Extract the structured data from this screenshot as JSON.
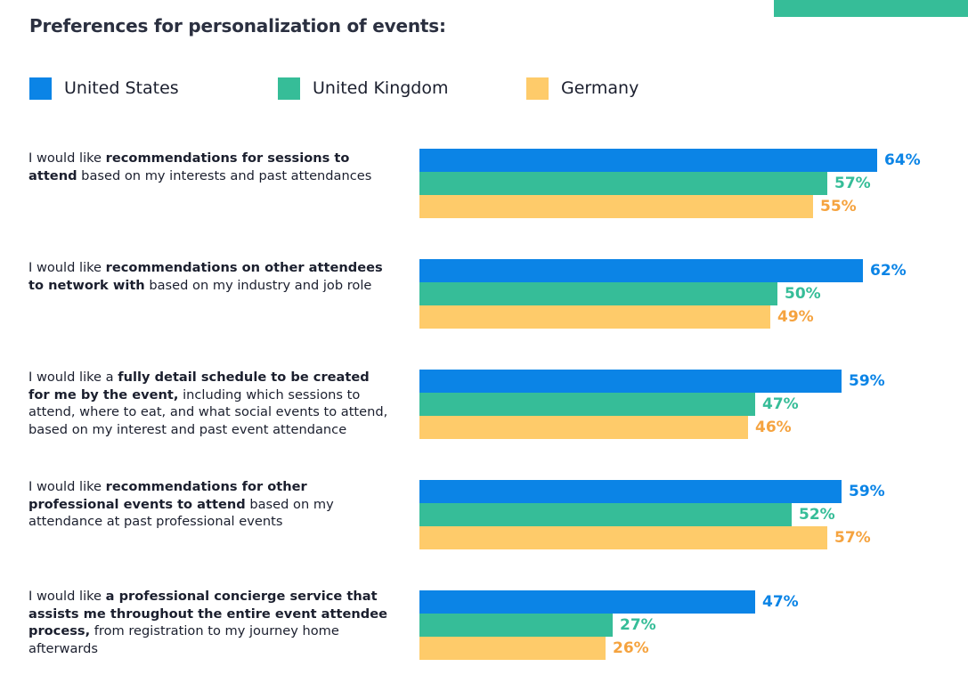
{
  "title": "Preferences for personalization of events:",
  "colors": {
    "accent": "#36bd98",
    "United States": "#0b84e6",
    "United Kingdom": "#36bd98",
    "Germany": "#fecb6a",
    "Germany_label": "#f5a33f"
  },
  "legend": [
    "United States",
    "United Kingdom",
    "Germany"
  ],
  "chart_data": {
    "type": "bar",
    "orientation": "horizontal",
    "title": "Preferences for personalization of events:",
    "xmax": 64,
    "categories": [
      "I would like recommendations for sessions to attend based on my interests and past attendances",
      "I would like recommendations on other attendees to network with based on my industry and job role",
      "I would like a fully detail schedule to be created for me by the event, including which sessions to attend, where to eat, and what social events to attend, based on my interest and past event attendance",
      "I would like recommendations for other professional events to attend based on my attendance at past professional events",
      "I would like a professional concierge service that assists me throughout the entire event attendee process, from registration to my journey home afterwards"
    ],
    "series": [
      {
        "name": "United States",
        "values": [
          64,
          62,
          59,
          59,
          47
        ],
        "labels": [
          "64%",
          "62%",
          "59%",
          "59%",
          "47%"
        ]
      },
      {
        "name": "United Kingdom",
        "values": [
          57,
          50,
          47,
          52,
          27
        ],
        "labels": [
          "57%",
          "50%",
          "47%",
          "52%",
          "27%"
        ]
      },
      {
        "name": "Germany",
        "values": [
          55,
          49,
          46,
          57,
          26
        ],
        "labels": [
          "55%",
          "49%",
          "46%",
          "57%",
          "26%"
        ]
      }
    ]
  },
  "questions": [
    [
      {
        "t": "I would like "
      },
      {
        "t": "recommendations for sessions to attend",
        "b": true
      },
      {
        "t": " based on my interests and past attendances"
      }
    ],
    [
      {
        "t": "I would like "
      },
      {
        "t": "recommendations on other attendees to network with",
        "b": true
      },
      {
        "t": " based on my industry and job role"
      }
    ],
    [
      {
        "t": "I would like a "
      },
      {
        "t": "fully detail schedule to be created for me by the event,",
        "b": true
      },
      {
        "t": " including which sessions to attend, where to eat, and what social events to attend, based on my interest and past event attendance"
      }
    ],
    [
      {
        "t": "I would like "
      },
      {
        "t": "recommendations for other professional events to attend",
        "b": true
      },
      {
        "t": " based on my attendance at past professional events"
      }
    ],
    [
      {
        "t": "I would like "
      },
      {
        "t": "a professional concierge service that assists me throughout the entire event attendee process,",
        "b": true
      },
      {
        "t": " from registration to my journey home afterwards"
      }
    ]
  ]
}
